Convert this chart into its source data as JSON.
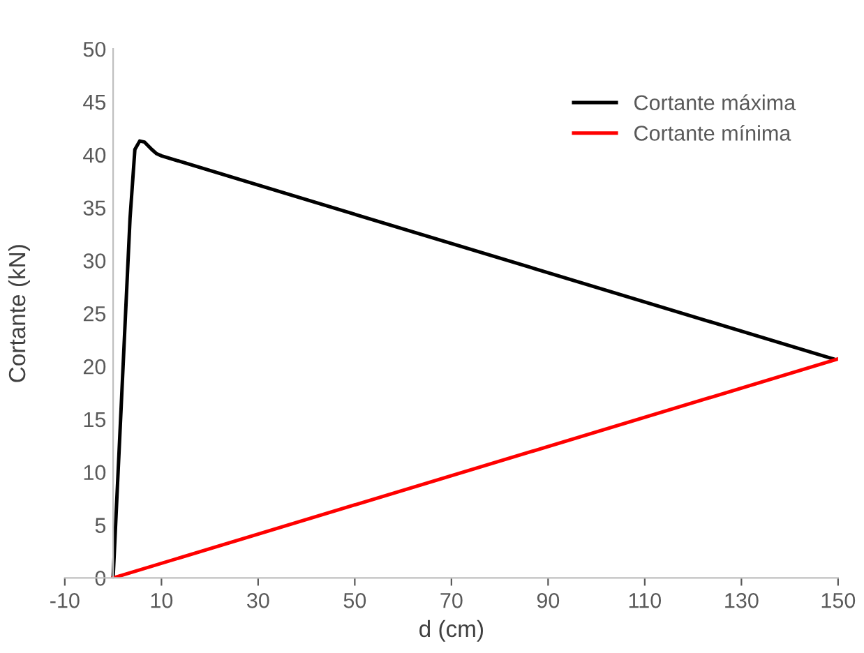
{
  "chart_data": {
    "type": "line",
    "xlabel": "d (cm)",
    "ylabel": "Cortante (kN)",
    "xlim": [
      -10,
      150
    ],
    "xticks": [
      -10,
      10,
      30,
      50,
      70,
      90,
      110,
      130,
      150
    ],
    "ylim": [
      0,
      50
    ],
    "yticks": [
      0,
      5,
      10,
      15,
      20,
      25,
      30,
      35,
      40,
      45,
      50
    ],
    "grid": false,
    "legend": "top right",
    "marker": "none",
    "line_style": "solid",
    "series": [
      {
        "name": "Cortante máxima",
        "color": "#000000",
        "x": [
          0,
          3.5,
          4.5,
          5.5,
          6.5,
          8,
          9,
          10,
          149
        ],
        "values": [
          0,
          34,
          40.5,
          41.3,
          41.2,
          40.5,
          40.1,
          39.9,
          20.7
        ]
      },
      {
        "name": "Cortante mínima",
        "color": "#ff0000",
        "x": [
          0,
          150
        ],
        "values": [
          0,
          20.7
        ]
      }
    ]
  }
}
